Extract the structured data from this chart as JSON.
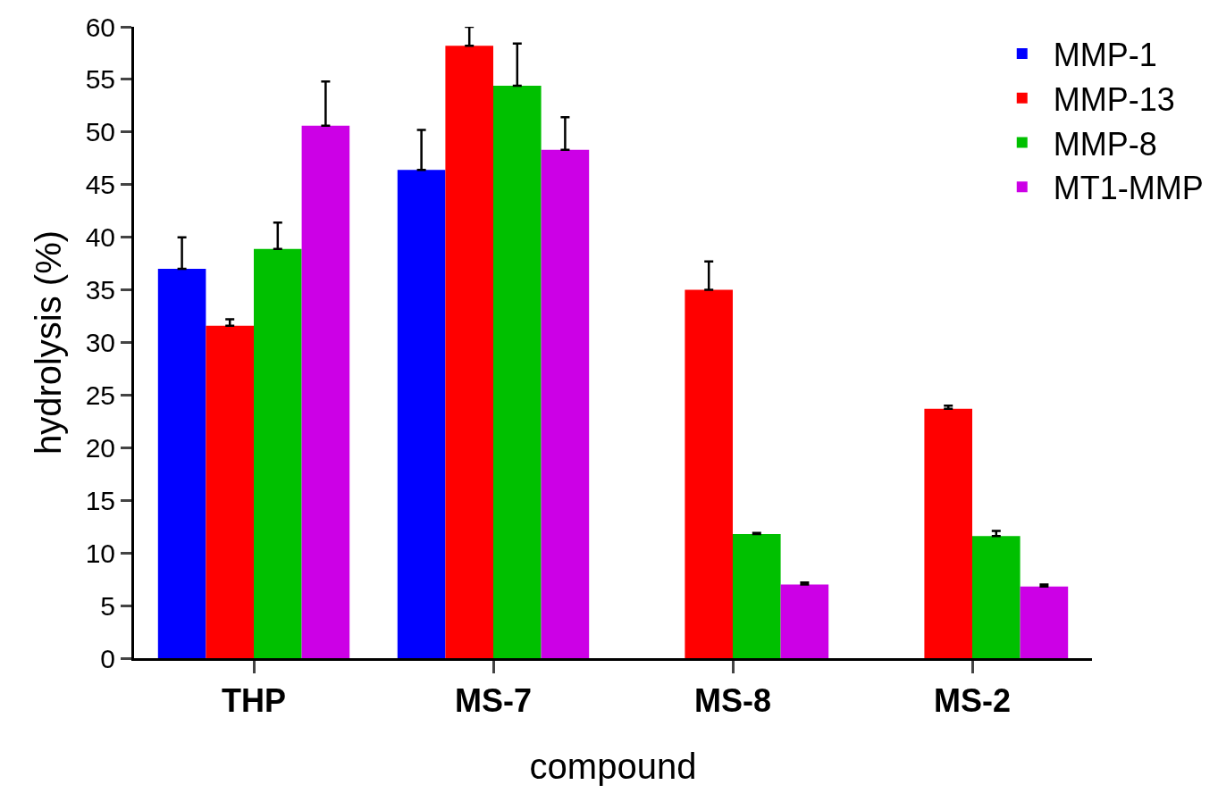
{
  "chart_data": {
    "type": "bar",
    "xlabel": "compound",
    "ylabel": "hydrolysis (%)",
    "categories": [
      "THP",
      "MS-7",
      "MS-8",
      "MS-2"
    ],
    "series": [
      {
        "name": "MMP-1",
        "color": "#0000ff",
        "values": [
          37,
          46.4,
          null,
          null
        ],
        "errors": [
          [
            37,
            40
          ],
          [
            46.4,
            50.2
          ],
          null,
          null
        ]
      },
      {
        "name": "MMP-13",
        "color": "#ff0000",
        "values": [
          31.6,
          58.2,
          35,
          23.7
        ],
        "errors": [
          [
            31.6,
            32.2
          ],
          [
            58.2,
            60
          ],
          [
            35,
            37.7
          ],
          [
            23.7,
            24
          ]
        ]
      },
      {
        "name": "MMP-8",
        "color": "#00c000",
        "values": [
          38.9,
          54.4,
          11.8,
          11.6
        ],
        "errors": [
          [
            38.9,
            41.4
          ],
          [
            54.4,
            58.4
          ],
          [
            11.8,
            11.9
          ],
          [
            11.6,
            12.1
          ]
        ]
      },
      {
        "name": "MT1-MMP",
        "color": "#cc00e6",
        "values": [
          50.6,
          48.3,
          7,
          6.8
        ],
        "errors": [
          [
            50.6,
            54.8
          ],
          [
            48.3,
            51.4
          ],
          [
            7,
            7.2
          ],
          [
            6.8,
            7
          ]
        ]
      }
    ],
    "ylim": [
      0,
      60
    ],
    "yticks": [
      0,
      5,
      10,
      15,
      20,
      25,
      30,
      35,
      40,
      45,
      50,
      55,
      60
    ],
    "legend": "top right"
  }
}
